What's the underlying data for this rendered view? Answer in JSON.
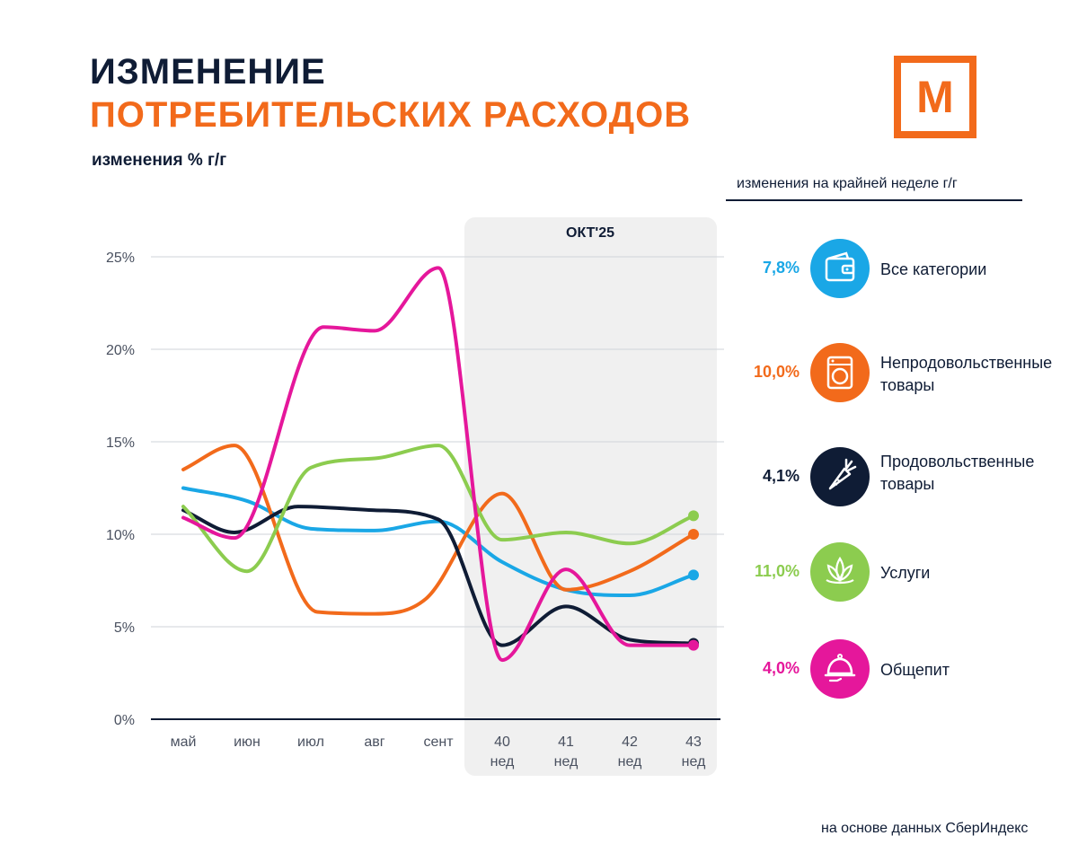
{
  "header": {
    "title_line1": "ИЗМЕНЕНИЕ",
    "title_line2": "ПОТРЕБИТЕЛЬСКИХ РАСХОДОВ",
    "subtitle": "изменения % г/г",
    "logo_letter": "М"
  },
  "legend": {
    "title": "изменения на крайней неделе г/г",
    "items": [
      {
        "value": "7,8%",
        "label1": "Все категории",
        "label2": "",
        "color": "#1aa7e6",
        "icon": "wallet-icon"
      },
      {
        "value": "10,0%",
        "label1": "Непродовольственные",
        "label2": "товары",
        "color": "#f26a1b",
        "icon": "washing-machine-icon"
      },
      {
        "value": "4,1%",
        "label1": "Продовольственные",
        "label2": "товары",
        "color": "#0f1c35",
        "icon": "carrot-icon"
      },
      {
        "value": "11,0%",
        "label1": "Услуги",
        "label2": "",
        "color": "#8ccc4f",
        "icon": "lotus-icon"
      },
      {
        "value": "4,0%",
        "label1": "Общепит",
        "label2": "",
        "color": "#e5179b",
        "icon": "cloche-icon"
      }
    ]
  },
  "source": "на основе данных СберИндекс",
  "chart_data": {
    "type": "line",
    "title": "ИЗМЕНЕНИЕ ПОТРЕБИТЕЛЬСКИХ РАСХОДОВ",
    "ylabel": "изменения % г/г",
    "ylim": [
      0,
      25
    ],
    "yticks": [
      "0%",
      "5%",
      "10%",
      "15%",
      "20%",
      "25%"
    ],
    "highlight_label": "ОКТ'25",
    "categories": [
      {
        "line1": "май",
        "line2": ""
      },
      {
        "line1": "июн",
        "line2": ""
      },
      {
        "line1": "июл",
        "line2": ""
      },
      {
        "line1": "авг",
        "line2": ""
      },
      {
        "line1": "сент",
        "line2": ""
      },
      {
        "line1": "40",
        "line2": "нед"
      },
      {
        "line1": "41",
        "line2": "нед"
      },
      {
        "line1": "42",
        "line2": "нед"
      },
      {
        "line1": "43",
        "line2": "нед"
      }
    ],
    "series": [
      {
        "name": "Все категории",
        "color": "#1aa7e6",
        "x": [
          0,
          1,
          2,
          3,
          4,
          5,
          6,
          7,
          8
        ],
        "y": [
          12.5,
          11.8,
          10.3,
          10.2,
          10.7,
          8.5,
          7.0,
          6.7,
          7.8
        ]
      },
      {
        "name": "Непродовольственные товары",
        "color": "#f26a1b",
        "x": [
          0,
          0.8,
          2.1,
          3,
          3.8,
          5,
          6,
          7,
          8
        ],
        "y": [
          13.5,
          14.8,
          5.8,
          5.7,
          6.5,
          12.2,
          7.0,
          8.0,
          10.0
        ]
      },
      {
        "name": "Продовольственные товары",
        "color": "#0f1c35",
        "x": [
          0,
          0.8,
          1.8,
          3,
          4,
          5,
          6,
          7,
          8
        ],
        "y": [
          11.3,
          10.1,
          11.5,
          11.3,
          10.8,
          4.0,
          6.1,
          4.3,
          4.1
        ]
      },
      {
        "name": "Услуги",
        "color": "#8ccc4f",
        "x": [
          0,
          1,
          2,
          3,
          4,
          5,
          6,
          7,
          8
        ],
        "y": [
          11.5,
          8.0,
          13.6,
          14.1,
          14.8,
          9.7,
          10.1,
          9.5,
          11.0
        ]
      },
      {
        "name": "Общепит",
        "color": "#e5179b",
        "x": [
          0,
          0.8,
          2.2,
          3,
          4,
          5,
          6,
          7,
          8
        ],
        "y": [
          10.9,
          9.8,
          21.2,
          21.0,
          24.4,
          3.2,
          8.1,
          4.0,
          4.0
        ]
      }
    ]
  }
}
